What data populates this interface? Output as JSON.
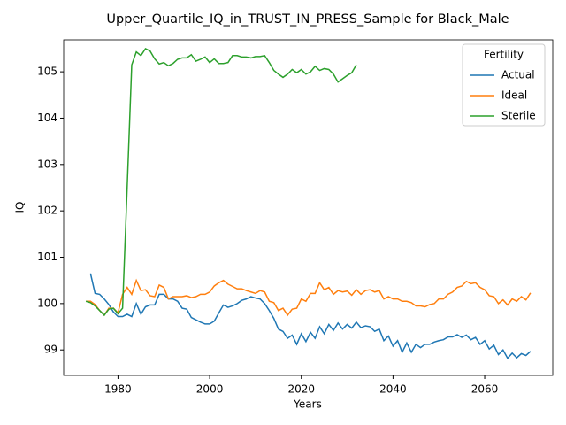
{
  "chart_data": {
    "type": "line",
    "title": "Upper_Quartile_IQ_in_TRUST_IN_PRESS_Sample for Black_Male",
    "xlabel": "Years",
    "ylabel": "IQ",
    "legend_title": "Fertility",
    "legend_loc": "upper right",
    "x": [
      1973,
      1974,
      1975,
      1976,
      1977,
      1978,
      1979,
      1980,
      1981,
      1982,
      1983,
      1984,
      1985,
      1986,
      1987,
      1988,
      1989,
      1990,
      1991,
      1992,
      1993,
      1994,
      1995,
      1996,
      1997,
      1998,
      1999,
      2000,
      2001,
      2002,
      2003,
      2004,
      2005,
      2006,
      2007,
      2008,
      2009,
      2010,
      2011,
      2012,
      2013,
      2014,
      2015,
      2016,
      2017,
      2018,
      2019,
      2020,
      2021,
      2022,
      2023,
      2024,
      2025,
      2026,
      2027,
      2028,
      2029,
      2030,
      2031,
      2032,
      2033,
      2034,
      2035,
      2036,
      2037,
      2038,
      2039,
      2040,
      2041,
      2042,
      2043,
      2044,
      2045,
      2046,
      2047,
      2048,
      2049,
      2050,
      2051,
      2052,
      2053,
      2054,
      2055,
      2056,
      2057,
      2058,
      2059,
      2060,
      2061,
      2062,
      2063,
      2064,
      2065,
      2066,
      2067,
      2068,
      2069,
      2070
    ],
    "series": [
      {
        "name": "Actual",
        "color": "#1f77b4",
        "values": [
          null,
          100.65,
          100.22,
          100.2,
          100.1,
          99.98,
          99.82,
          99.72,
          99.72,
          99.77,
          99.72,
          100.0,
          99.77,
          99.93,
          99.97,
          99.97,
          100.2,
          100.2,
          100.1,
          100.1,
          100.05,
          99.9,
          99.88,
          99.7,
          99.65,
          99.6,
          99.56,
          99.56,
          99.62,
          99.8,
          99.97,
          99.92,
          99.95,
          100.0,
          100.07,
          100.1,
          100.15,
          100.12,
          100.1,
          100.0,
          99.85,
          99.68,
          99.45,
          99.4,
          99.25,
          99.32,
          99.12,
          99.35,
          99.18,
          99.38,
          99.25,
          99.5,
          99.35,
          99.55,
          99.42,
          99.58,
          99.45,
          99.55,
          99.47,
          99.6,
          99.48,
          99.52,
          99.5,
          99.4,
          99.45,
          99.2,
          99.3,
          99.08,
          99.2,
          98.95,
          99.15,
          98.95,
          99.12,
          99.05,
          99.12,
          99.12,
          99.17,
          99.2,
          99.22,
          99.28,
          99.28,
          99.33,
          99.27,
          99.32,
          99.22,
          99.27,
          99.12,
          99.2,
          99.02,
          99.1,
          98.9,
          99.0,
          98.82,
          98.93,
          98.83,
          98.92,
          98.88,
          98.97
        ]
      },
      {
        "name": "Ideal",
        "color": "#ff7f0e",
        "values": [
          100.05,
          100.05,
          99.98,
          99.85,
          99.75,
          99.9,
          99.9,
          99.8,
          100.2,
          100.35,
          100.2,
          100.5,
          100.28,
          100.3,
          100.17,
          100.15,
          100.4,
          100.35,
          100.1,
          100.15,
          100.15,
          100.15,
          100.17,
          100.13,
          100.15,
          100.2,
          100.2,
          100.25,
          100.38,
          100.45,
          100.5,
          100.42,
          100.37,
          100.32,
          100.32,
          100.28,
          100.25,
          100.22,
          100.28,
          100.25,
          100.05,
          100.02,
          99.85,
          99.9,
          99.75,
          99.88,
          99.9,
          100.1,
          100.05,
          100.22,
          100.22,
          100.45,
          100.3,
          100.35,
          100.2,
          100.28,
          100.25,
          100.27,
          100.18,
          100.3,
          100.2,
          100.28,
          100.3,
          100.25,
          100.28,
          100.1,
          100.15,
          100.1,
          100.1,
          100.05,
          100.05,
          100.02,
          99.95,
          99.95,
          99.93,
          99.98,
          100.0,
          100.1,
          100.1,
          100.2,
          100.25,
          100.35,
          100.38,
          100.48,
          100.43,
          100.45,
          100.35,
          100.3,
          100.17,
          100.15,
          100.0,
          100.08,
          99.97,
          100.1,
          100.05,
          100.15,
          100.08,
          100.23
        ]
      },
      {
        "name": "Sterile",
        "color": "#2ca02c",
        "values": [
          100.05,
          100.02,
          99.95,
          99.85,
          99.75,
          99.88,
          99.9,
          99.78,
          99.9,
          102.5,
          105.15,
          105.43,
          105.35,
          105.5,
          105.45,
          105.28,
          105.17,
          105.2,
          105.13,
          105.18,
          105.27,
          105.3,
          105.3,
          105.37,
          105.23,
          105.27,
          105.32,
          105.2,
          105.28,
          105.18,
          105.18,
          105.2,
          105.35,
          105.35,
          105.32,
          105.32,
          105.3,
          105.33,
          105.33,
          105.35,
          105.2,
          105.03,
          104.95,
          104.88,
          104.95,
          105.05,
          104.98,
          105.05,
          104.95,
          105.0,
          105.12,
          105.03,
          105.07,
          105.05,
          104.95,
          104.78,
          104.85,
          104.92,
          104.98,
          105.15,
          null,
          null,
          null,
          null,
          null,
          null,
          null,
          null,
          null,
          null,
          null,
          null,
          null,
          null,
          null,
          null,
          null,
          null,
          null,
          null,
          null,
          null,
          null,
          null,
          null,
          null,
          null,
          null,
          null,
          null,
          null,
          null,
          null,
          null,
          null,
          null,
          null,
          null
        ]
      }
    ],
    "xlim": [
      1968.15,
      2074.85
    ],
    "ylim": [
      98.45,
      105.69
    ],
    "xticks": [
      1980,
      2000,
      2020,
      2040,
      2060
    ],
    "yticks": [
      99,
      100,
      101,
      102,
      103,
      104,
      105
    ]
  }
}
